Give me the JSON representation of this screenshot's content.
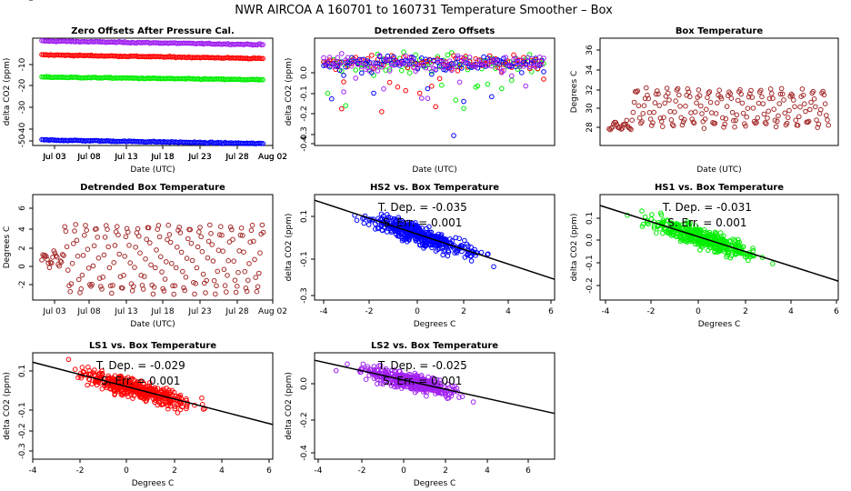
{
  "page_title": "NWR   AIRCOA A   160701 to 160731   Temperature Smoother – Box",
  "colors": {
    "red": "#ff0000",
    "green": "#00ee00",
    "blue": "#0000ff",
    "purple": "#a020f0",
    "brown": "#a52a2a"
  },
  "chart_data": [
    {
      "type": "scatter",
      "title": "Zero Offsets After Pressure Cal.",
      "xlabel": "Date (UTC)",
      "ylabel": "delta CO2 (ppm)",
      "x_tick_labels": [
        "Jul 03",
        "Jul 08",
        "Jul 13",
        "Jul 18",
        "Jul 23",
        "Jul 28",
        "Aug 02"
      ],
      "y_tick_labels": [
        "-10",
        "-20",
        "-30",
        "-40",
        "-50"
      ],
      "ylim": [
        -58,
        0
      ],
      "series": [
        {
          "color": "purple",
          "start": -1.5,
          "end": -3.5
        },
        {
          "color": "red",
          "start": -9,
          "end": -11
        },
        {
          "color": "green",
          "start": -21,
          "end": -22.5
        },
        {
          "color": "blue",
          "start": -55,
          "end": -57
        }
      ]
    },
    {
      "type": "scatter",
      "title": "Detrended Zero Offsets",
      "xlabel": "Date (UTC)",
      "ylabel": "delta CO2 (ppm)",
      "x_tick_labels": [
        "Jul 03",
        "Jul 08",
        "Jul 13",
        "Jul 18",
        "Jul 23",
        "Jul 28",
        "Aug 02"
      ],
      "y_tick_labels": [
        "0.0",
        "-0.1",
        "-0.2",
        "-0.3",
        "-0.4"
      ],
      "ylim": [
        -0.42,
        0.15
      ],
      "series_colors": [
        "green",
        "red",
        "blue",
        "purple"
      ]
    },
    {
      "type": "scatter",
      "title": "Box Temperature",
      "xlabel": "Date (UTC)",
      "ylabel": "Degrees C",
      "x_tick_labels": [
        "Jul 03",
        "Jul 08",
        "Jul 13",
        "Jul 18",
        "Jul 23",
        "Jul 28",
        "Aug 02"
      ],
      "y_tick_labels": [
        "28",
        "30",
        "32",
        "34",
        "36"
      ],
      "ylim": [
        26.5,
        36.5
      ],
      "color": "brown"
    },
    {
      "type": "scatter",
      "title": "Detrended Box Temperature",
      "xlabel": "Date (UTC)",
      "ylabel": "Degrees C",
      "x_tick_labels": [
        "Jul 03",
        "Jul 08",
        "Jul 13",
        "Jul 18",
        "Jul 23",
        "Jul 28",
        "Aug 02"
      ],
      "y_tick_labels": [
        "6",
        "4",
        "2",
        "0",
        "-2",
        "-4"
      ],
      "ylim": [
        -4.5,
        7
      ],
      "color": "brown"
    },
    {
      "type": "scatter",
      "title": "HS2 vs. Box Temperature",
      "xlabel": "Degrees C",
      "ylabel": "delta CO2 (ppm)",
      "x_tick_labels": [
        "-4",
        "-2",
        "0",
        "2",
        "4",
        "6"
      ],
      "y_tick_labels": [
        "0.1",
        "-0.1",
        "-0.3"
      ],
      "xlim": [
        -4.4,
        6.1
      ],
      "ylim": [
        -0.31,
        0.18
      ],
      "color": "blue",
      "slope": -0.035,
      "annotations": [
        "T. Dep. =  -0.035",
        "S. Err. =  0.001"
      ]
    },
    {
      "type": "scatter",
      "title": "HS1 vs. Box Temperature",
      "xlabel": "Degrees C",
      "ylabel": "delta CO2 (ppm)",
      "x_tick_labels": [
        "-4",
        "-2",
        "0",
        "2",
        "4",
        "6"
      ],
      "y_tick_labels": [
        "0.1",
        "0.0",
        "-0.1",
        "-0.2"
      ],
      "xlim": [
        -4.3,
        6.1
      ],
      "ylim": [
        -0.27,
        0.18
      ],
      "color": "green",
      "slope": -0.031,
      "annotations": [
        "T. Dep. =  -0.031",
        "S. Err. =  0.001"
      ]
    },
    {
      "type": "scatter",
      "title": "LS1 vs. Box Temperature",
      "xlabel": "Degrees C",
      "ylabel": "delta CO2 (ppm)",
      "x_tick_labels": [
        "-4",
        "-2",
        "0",
        "2",
        "4",
        "6"
      ],
      "y_tick_labels": [
        "0.1",
        "-0.1",
        "-0.2",
        "-0.3"
      ],
      "xlim": [
        -4.3,
        6.0
      ],
      "ylim": [
        -0.34,
        0.17
      ],
      "color": "red",
      "slope": -0.029,
      "annotations": [
        "T. Dep. =  -0.029",
        "S. Err. =  0.001"
      ]
    },
    {
      "type": "scatter",
      "title": "LS2 vs. Box Temperature",
      "xlabel": "Degrees C",
      "ylabel": "delta CO2 (ppm)",
      "x_tick_labels": [
        "-4",
        "-2",
        "0",
        "2",
        "4",
        "6"
      ],
      "y_tick_labels": [
        "0.0",
        "-0.2",
        "-0.4"
      ],
      "xlim": [
        -4.4,
        7.0
      ],
      "ylim": [
        -0.42,
        0.15
      ],
      "color": "purple",
      "slope": -0.025,
      "annotations": [
        "T. Dep. =  -0.025",
        "S. Err. =  0.001"
      ]
    }
  ]
}
